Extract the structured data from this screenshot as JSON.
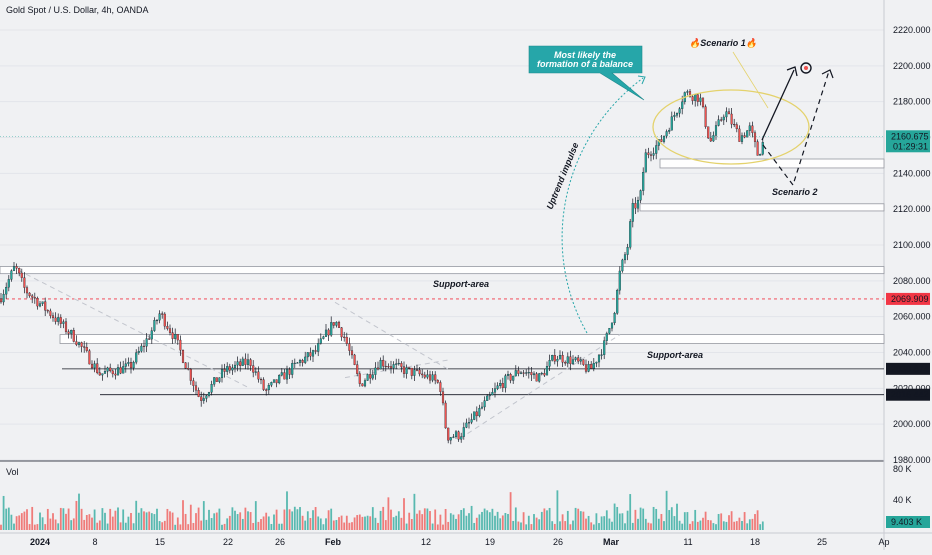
{
  "header": {
    "symbol_title": "Gold Spot / U.S. Dollar, 4h, OANDA"
  },
  "colors": {
    "up": "#26a69a",
    "down": "#ef5350",
    "zone": "#ffffff",
    "zone_border": "#9598a1",
    "ellipse": "#e4d26c",
    "callout": "#26a6a9",
    "red_line": "#f23645"
  },
  "chart_data": {
    "type": "candlestick",
    "symbol": "Gold Spot / U.S. Dollar",
    "timeframe": "4h",
    "source": "OANDA",
    "ylim": [
      1980,
      2220
    ],
    "y_ticks": [
      1980,
      2000,
      2020,
      2040,
      2060,
      2080,
      2100,
      2120,
      2140,
      2160,
      2180,
      2200,
      2220
    ],
    "x_labels": [
      "2024",
      "8",
      "15",
      "22",
      "26",
      "Feb",
      "12",
      "19",
      "26",
      "Mar",
      "11",
      "18",
      "25",
      "Ap"
    ],
    "price_tags": [
      {
        "label": "2160.675",
        "sub": "01:29:31",
        "value": 2160.675,
        "style": "current"
      },
      {
        "label": "2069.909",
        "value": 2069.909,
        "style": "red"
      },
      {
        "label": "2030.874",
        "value": 2030.874,
        "style": "dark"
      },
      {
        "label": "2016.442",
        "value": 2016.442,
        "style": "dark"
      }
    ],
    "zones": [
      {
        "from": 2143,
        "to": 2148
      },
      {
        "from": 2119,
        "to": 2123
      },
      {
        "from": 2084,
        "to": 2088
      },
      {
        "from": 2045,
        "to": 2050
      }
    ],
    "horizontal_lines": [
      2030.874,
      2016.442
    ],
    "annotations": {
      "support_area_1": "Support-area",
      "support_area_2": "Support-area",
      "uptrend": "Uptrend impulse",
      "callout": "Most likely the formation of a balance",
      "scenario1": "🔥Scenario 1🔥",
      "scenario2": "Scenario 2"
    },
    "volume": {
      "label": "Vol",
      "ticks": [
        "80 K",
        "40 K"
      ],
      "current": "9.403 K",
      "vmax": 80
    }
  }
}
